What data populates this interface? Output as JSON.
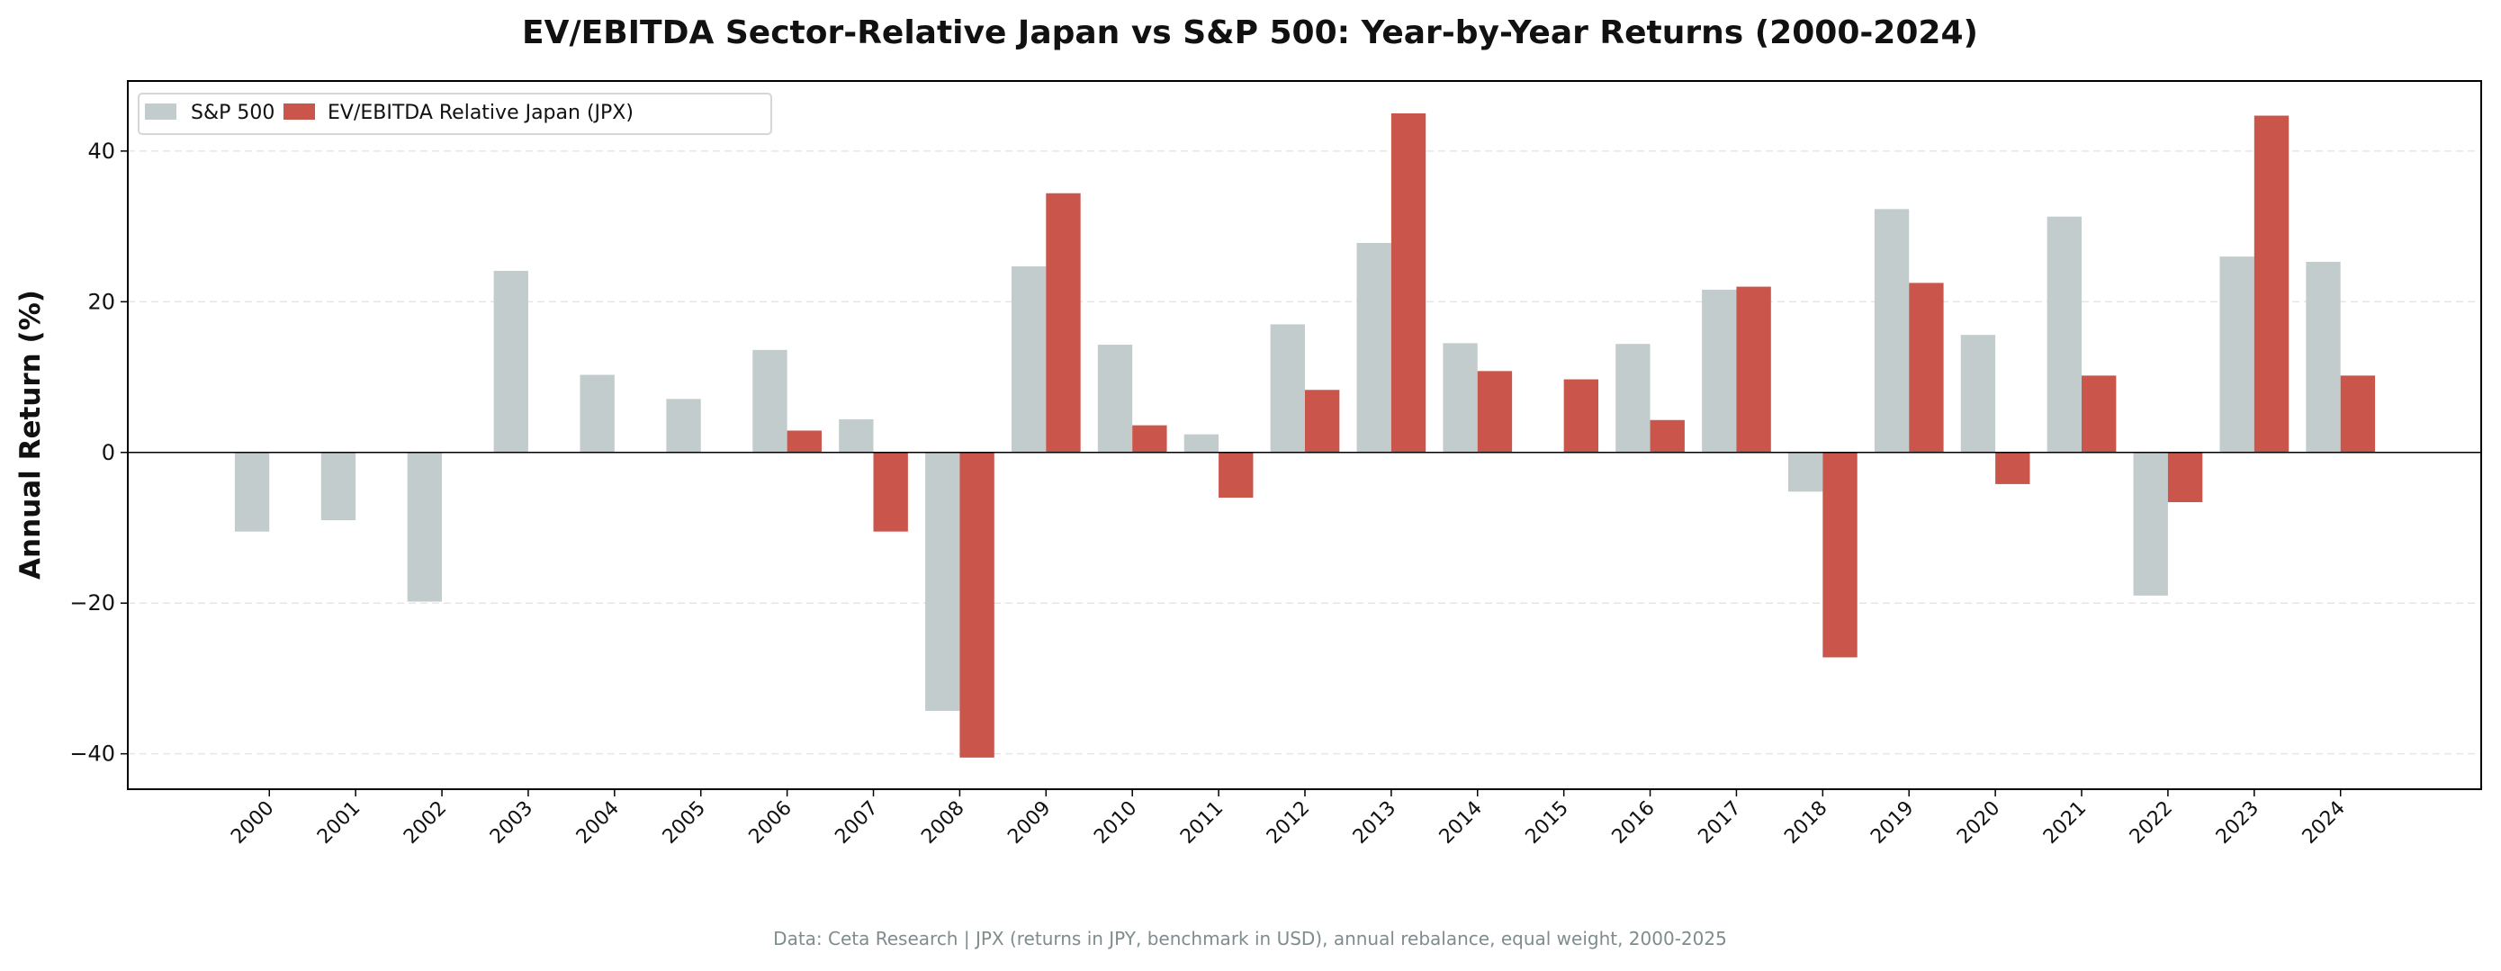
{
  "chart_data": {
    "type": "bar",
    "title": "EV/EBITDA Sector-Relative Japan vs S&P 500: Year-by-Year Returns (2000-2024)",
    "xlabel": "",
    "ylabel": "Annual Return (%)",
    "ylim": [
      -44.7,
      49.3
    ],
    "yticks": [
      -40,
      -20,
      0,
      20,
      40
    ],
    "grid": "horizontal dashed",
    "legend": "top-left",
    "categories": [
      "2000",
      "2001",
      "2002",
      "2003",
      "2004",
      "2005",
      "2006",
      "2007",
      "2008",
      "2009",
      "2010",
      "2011",
      "2012",
      "2013",
      "2014",
      "2015",
      "2016",
      "2017",
      "2018",
      "2019",
      "2020",
      "2021",
      "2022",
      "2023",
      "2024"
    ],
    "series": [
      {
        "name": "S&P 500",
        "color": "#c3cccc",
        "values": [
          -10.5,
          -9.0,
          -19.8,
          24.1,
          10.3,
          7.1,
          13.6,
          4.4,
          -34.3,
          24.7,
          14.3,
          2.4,
          17.0,
          27.8,
          14.5,
          0.0,
          14.4,
          21.6,
          -5.2,
          32.3,
          15.6,
          31.3,
          -19.0,
          26.0,
          25.3
        ]
      },
      {
        "name": "EV/EBITDA Relative Japan (JPX)",
        "color": "#c9554b",
        "values": [
          0,
          0,
          0,
          0,
          0,
          0,
          2.9,
          -10.5,
          -40.5,
          34.4,
          3.6,
          -6.0,
          8.3,
          45.0,
          10.8,
          9.7,
          4.3,
          22.0,
          -27.2,
          22.5,
          -4.2,
          10.2,
          -6.6,
          44.7,
          10.2
        ]
      }
    ],
    "footnote": "Data: Ceta Research | JPX (returns in JPY, benchmark in USD), annual rebalance, equal weight, 2000-2025"
  }
}
